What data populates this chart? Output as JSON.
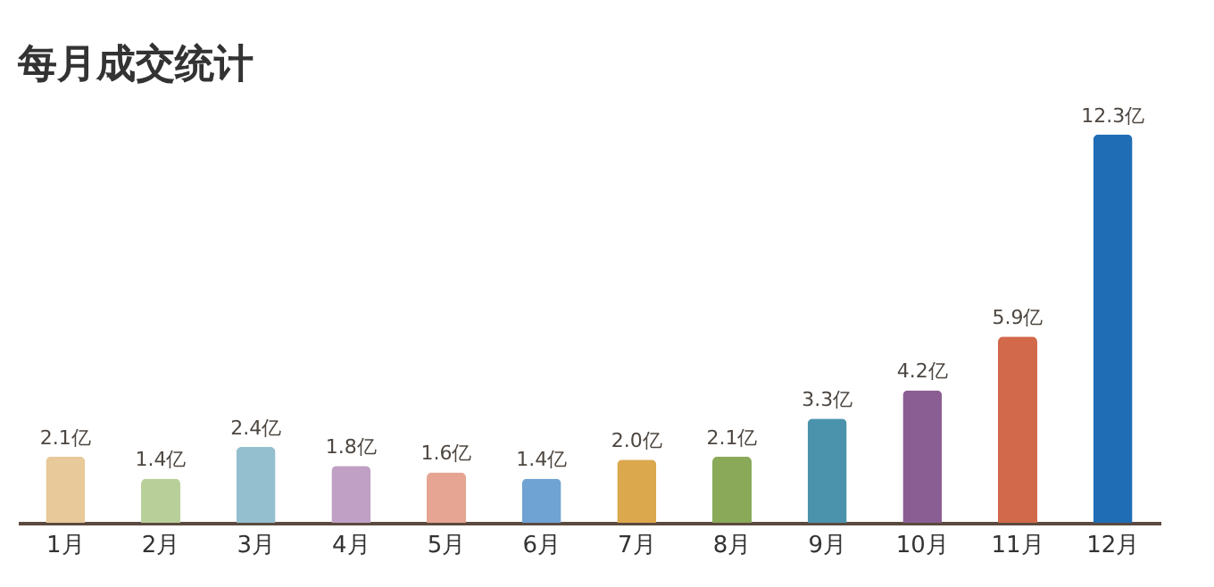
{
  "chart_data": {
    "type": "bar",
    "title": "每月成交统计",
    "categories": [
      "1月",
      "2月",
      "3月",
      "4月",
      "5月",
      "6月",
      "7月",
      "8月",
      "9月",
      "10月",
      "11月",
      "12月"
    ],
    "values": [
      2.1,
      1.4,
      2.4,
      1.8,
      1.6,
      1.4,
      2.0,
      2.1,
      3.3,
      4.2,
      5.9,
      12.3
    ],
    "value_labels": [
      "2.1亿",
      "1.4亿",
      "2.4亿",
      "1.8亿",
      "1.6亿",
      "1.4亿",
      "2.0亿",
      "2.1亿",
      "3.3亿",
      "4.2亿",
      "5.9亿",
      "12.3亿"
    ],
    "colors": [
      "#e8c99a",
      "#b9cf9a",
      "#94bfcf",
      "#c0a0c4",
      "#e6a593",
      "#6fa3d3",
      "#dba84e",
      "#8aaa5a",
      "#4b93ad",
      "#8a5e92",
      "#d2694a",
      "#1f6db5"
    ],
    "grid": false
  }
}
